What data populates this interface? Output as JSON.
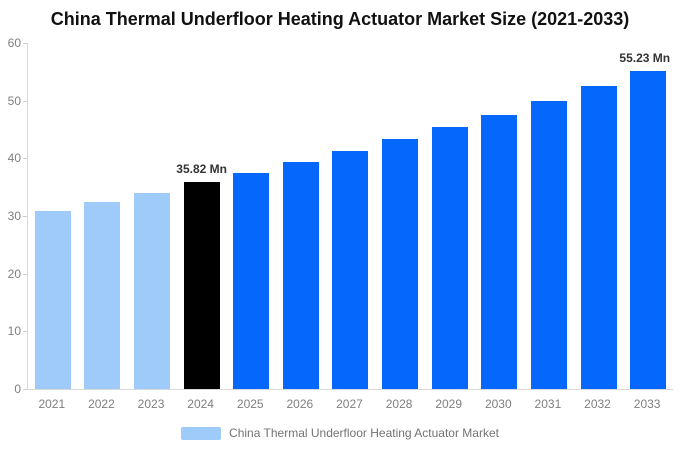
{
  "title": "China Thermal Underfloor Heating Actuator Market Size (2021-2033)",
  "colors": {
    "light_blue": "#9ECBFA",
    "highlight_black": "#000000",
    "blue": "#0667FC",
    "axis_line": "#d9d9d9",
    "axis_text": "#7f7f7f",
    "legend_text": "#737373"
  },
  "chart_data": {
    "type": "bar",
    "categories": [
      "2021",
      "2022",
      "2023",
      "2024",
      "2025",
      "2026",
      "2027",
      "2028",
      "2029",
      "2030",
      "2031",
      "2032",
      "2033"
    ],
    "values": [
      30.8,
      32.4,
      34.0,
      35.82,
      37.5,
      39.3,
      41.2,
      43.3,
      45.4,
      47.6,
      50.0,
      52.5,
      55.23
    ],
    "bar_colors": [
      "#9ECBFA",
      "#9ECBFA",
      "#9ECBFA",
      "#000000",
      "#0667FC",
      "#0667FC",
      "#0667FC",
      "#0667FC",
      "#0667FC",
      "#0667FC",
      "#0667FC",
      "#0667FC",
      "#0667FC"
    ],
    "bar_labels": [
      "",
      "",
      "",
      "35.82 Mn",
      "",
      "",
      "",
      "",
      "",
      "",
      "",
      "",
      "55.23 Mn"
    ],
    "title": "China Thermal Underfloor Heating Actuator Market Size (2021-2033)",
    "xlabel": "",
    "ylabel": "",
    "ylim": [
      0,
      60
    ],
    "yticks": [
      0,
      10,
      20,
      30,
      40,
      50,
      60
    ],
    "grid": false,
    "legend": {
      "label": "China Thermal Underfloor Heating Actuator Market",
      "swatch_color": "#9ECBFA",
      "position": "bottom"
    }
  }
}
